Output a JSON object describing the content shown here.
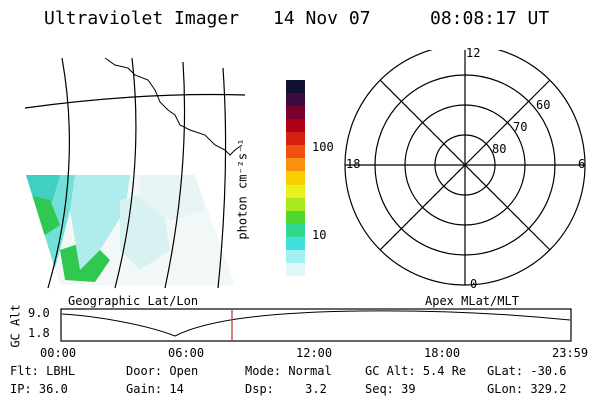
{
  "header": {
    "instrument": "Ultraviolet Imager",
    "date": "14 Nov 07",
    "time": "08:08:17 UT"
  },
  "left_panel": {
    "caption": "Geographic Lat/Lon"
  },
  "colorbar": {
    "unit_label": "photon cm⁻²s⁻¹",
    "ticks": [
      "100",
      "10"
    ],
    "colors": [
      "#111133",
      "#3a0a40",
      "#7a0030",
      "#b00018",
      "#d82010",
      "#f05010",
      "#f89010",
      "#f8d000",
      "#e8f020",
      "#a8e820",
      "#50d830",
      "#30d890",
      "#40e0e0",
      "#a0f0f0",
      "#e0f8f8"
    ]
  },
  "polar_plot": {
    "caption": "Apex MLat/MLT",
    "mlt_labels": {
      "top": "12",
      "right": "6",
      "bottom": "0",
      "left": "18"
    },
    "lat_labels": [
      "60",
      "70",
      "80"
    ]
  },
  "orbit_plot": {
    "ylabel": "GC Alt",
    "yticks": [
      "9.0",
      "1.8"
    ],
    "xticks": [
      "00:00",
      "06:00",
      "12:00",
      "18:00",
      "23:59"
    ],
    "marker_color": "#c03030"
  },
  "status": {
    "row1": [
      {
        "key": "Flt:",
        "value": "LBHL"
      },
      {
        "key": "Door:",
        "value": "Open"
      },
      {
        "key": "Mode:",
        "value": "Normal"
      },
      {
        "key": "GC Alt:",
        "value": "5.4 Re"
      },
      {
        "key": "GLat:",
        "value": "-30.6"
      }
    ],
    "row2": [
      {
        "key": "IP:",
        "value": "36.0"
      },
      {
        "key": "Gain:",
        "value": "14"
      },
      {
        "key": "Dsp:",
        "value": "3.2"
      },
      {
        "key": "Seq:",
        "value": "39"
      },
      {
        "key": "GLon:",
        "value": "329.2"
      }
    ]
  }
}
